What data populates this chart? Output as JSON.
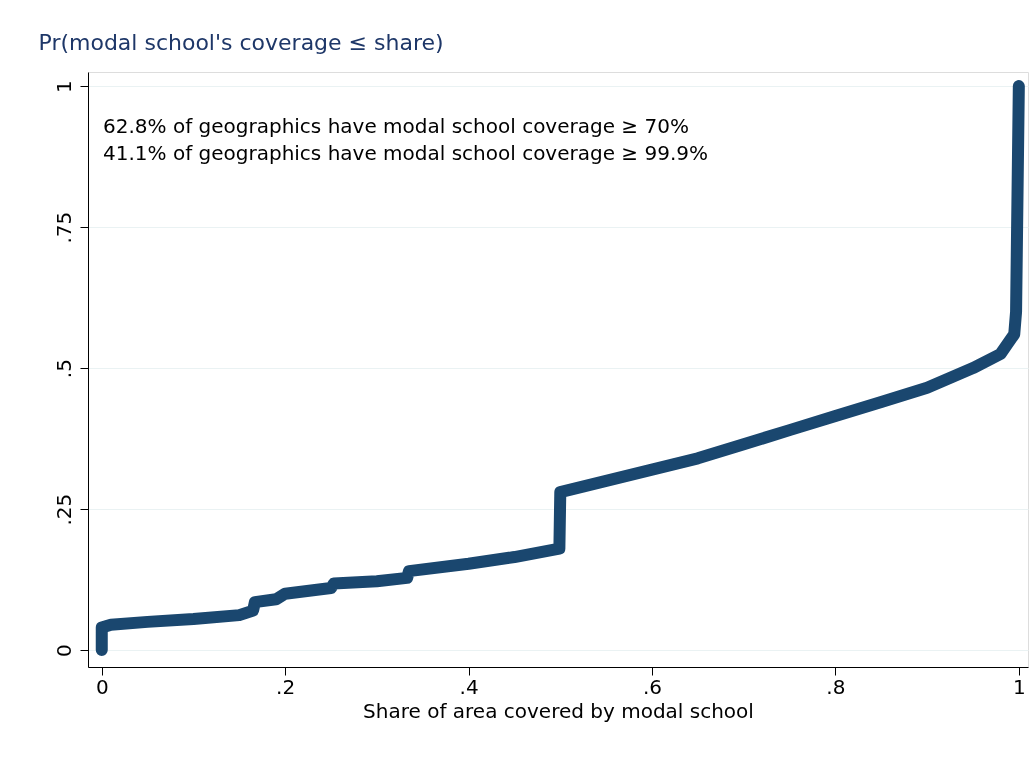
{
  "chart_data": {
    "type": "line",
    "ylabel": "Pr(modal school's coverage ≤ share)",
    "xlabel": "Share of area covered by modal school",
    "annotations": [
      "62.8% of geographics have modal school coverage ≥ 70%",
      "41.1% of geographics have modal school coverage ≥ 99.9%"
    ],
    "x": [
      0,
      0,
      0.01,
      0.05,
      0.1,
      0.15,
      0.165,
      0.167,
      0.19,
      0.2,
      0.25,
      0.253,
      0.3,
      0.333,
      0.335,
      0.4,
      0.45,
      0.499,
      0.5,
      0.55,
      0.6,
      0.65,
      0.7,
      0.75,
      0.8,
      0.85,
      0.9,
      0.95,
      0.98,
      0.995,
      0.997,
      1
    ],
    "series": [
      {
        "color": "#1a476f",
        "values": [
          0,
          0.04,
          0.045,
          0.05,
          0.055,
          0.062,
          0.07,
          0.085,
          0.09,
          0.1,
          0.11,
          0.118,
          0.122,
          0.128,
          0.14,
          0.153,
          0.165,
          0.18,
          0.28,
          0.3,
          0.32,
          0.34,
          0.365,
          0.39,
          0.415,
          0.44,
          0.465,
          0.5,
          0.525,
          0.56,
          0.6,
          1
        ]
      }
    ],
    "xlim": [
      -0.015,
      1.01
    ],
    "ylim": [
      -0.03,
      1.025
    ],
    "xticks": [
      0,
      {
        "value": 0.2,
        "label": ".2"
      },
      {
        "value": 0.4,
        "label": ".4"
      },
      {
        "value": 0.6,
        "label": ".6"
      },
      {
        "value": 0.8,
        "label": ".8"
      },
      1
    ],
    "yticks": [
      0,
      {
        "value": 0.25,
        "label": ".25"
      },
      {
        "value": 0.5,
        "label": ".5"
      },
      {
        "value": 0.75,
        "label": ".75"
      },
      1
    ],
    "grid": "y",
    "line_style": "solid"
  }
}
